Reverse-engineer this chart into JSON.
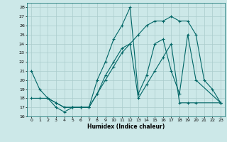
{
  "xlabel": "Humidex (Indice chaleur)",
  "bg_color": "#cce8e8",
  "line_color": "#006666",
  "grid_color": "#aacccc",
  "xlim": [
    -0.5,
    23.5
  ],
  "ylim": [
    16,
    28.5
  ],
  "yticks": [
    16,
    17,
    18,
    19,
    20,
    21,
    22,
    23,
    24,
    25,
    26,
    27,
    28
  ],
  "xticks": [
    0,
    1,
    2,
    3,
    4,
    5,
    6,
    7,
    8,
    9,
    10,
    11,
    12,
    13,
    14,
    15,
    16,
    17,
    18,
    19,
    20,
    21,
    22,
    23
  ],
  "line1_x": [
    0,
    1,
    2,
    3,
    4,
    5,
    6,
    7,
    8,
    9,
    10,
    11,
    12,
    13,
    14,
    15,
    16,
    17,
    18,
    19,
    20,
    23
  ],
  "line1_y": [
    21,
    19,
    18,
    17,
    16.5,
    17,
    17,
    17,
    20,
    22,
    24.5,
    26,
    28,
    18.5,
    20.5,
    24,
    24.5,
    21,
    18.5,
    25,
    20,
    17.5
  ],
  "line2_x": [
    0,
    1,
    2,
    3,
    4,
    5,
    6,
    7,
    8,
    9,
    10,
    11,
    12,
    13,
    14,
    15,
    16,
    17,
    18,
    19,
    20,
    23
  ],
  "line2_y": [
    18,
    18,
    18,
    17.5,
    17,
    17,
    17,
    17,
    18.5,
    20,
    21.5,
    23,
    24,
    18,
    19.5,
    21,
    22.5,
    24,
    17.5,
    17.5,
    17.5,
    17.5
  ],
  "line3_x": [
    2,
    3,
    4,
    5,
    6,
    7,
    8,
    9,
    10,
    11,
    12,
    13,
    14,
    15,
    16,
    17,
    18,
    19,
    20,
    21,
    22,
    23
  ],
  "line3_y": [
    18,
    17.5,
    17,
    17,
    17,
    17,
    18.5,
    20.5,
    22,
    23.5,
    24,
    25,
    26,
    26.5,
    26.5,
    27,
    26.5,
    26.5,
    25,
    20,
    19,
    17.5
  ]
}
